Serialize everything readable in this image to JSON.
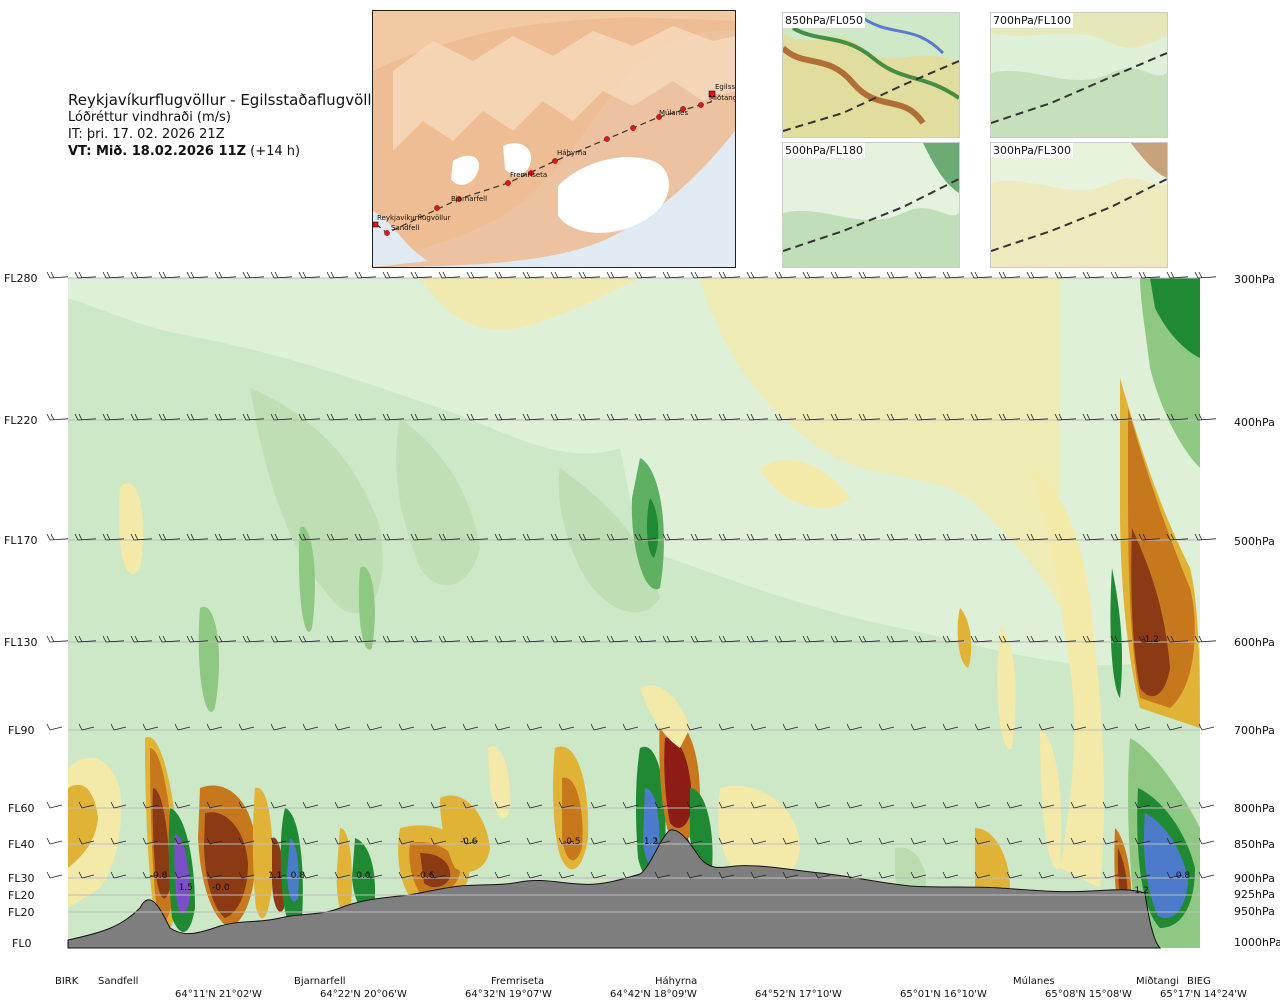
{
  "header": {
    "route": "Reykjavíkurflugvöllur - Egilsstaðaflugvöllur",
    "parameter": "Lóðréttur vindhraði (m/s)",
    "issue_time": "IT: þri. 17. 02. 2026 21Z",
    "valid_label": "VT: Mið. 18.02.2026 11Z",
    "valid_offset": "(+14 h)"
  },
  "map": {
    "waypoints": [
      "Reykjavíkurflugvöllur",
      "Sandfell",
      "Bjarnarfell",
      "Fremriseta",
      "Háhyrna",
      "Múlanes",
      "Miðtangi",
      "Egilsstaðir"
    ]
  },
  "thumbnails": [
    {
      "label": "850hPa/FL050"
    },
    {
      "label": "700hPa/FL100"
    },
    {
      "label": "500hPa/FL180"
    },
    {
      "label": "300hPa/FL300"
    }
  ],
  "chart_data": {
    "type": "heatmap",
    "title": "Reykjavíkurflugvöllur - Egilsstaðaflugvöllur",
    "colorbar_label": "Lóðréttur vindhraði (m/s)",
    "left_axis_flight_levels": [
      "FL280",
      "FL220",
      "FL170",
      "FL130",
      "FL90",
      "FL60",
      "FL40",
      "FL30",
      "FL20",
      "FL20",
      "FL0"
    ],
    "right_axis_pressure_levels": [
      "300hPa",
      "400hPa",
      "500hPa",
      "600hPa",
      "700hPa",
      "800hPa",
      "850hPa",
      "900hPa",
      "925hPa",
      "950hPa",
      "1000hPa"
    ],
    "waypoints": [
      "BIRK",
      "Sandfell",
      "Bjarnarfell",
      "Fremriseta",
      "Háhyrna",
      "Múlanes",
      "Miðtangi",
      "BIEG"
    ],
    "coordinates": [
      "64°11'N 21°02'W",
      "64°22'N 20°06'W",
      "64°32'N 19°07'W",
      "64°42'N 18°09'W",
      "64°52'N 17°10'W",
      "65°01'N 16°10'W",
      "65°08'N 15°08'W",
      "65°17'N 14°24'W"
    ],
    "contour_labels": [
      {
        "text": "-0.8",
        "x": 0.08,
        "p": 900
      },
      {
        "text": "1.5",
        "x": 0.104,
        "p": 918
      },
      {
        "text": "-0.0",
        "x": 0.135,
        "p": 918
      },
      {
        "text": "1.1",
        "x": 0.183,
        "p": 900
      },
      {
        "text": "0.8",
        "x": 0.203,
        "p": 900
      },
      {
        "text": "0.0",
        "x": 0.261,
        "p": 900
      },
      {
        "text": "-0.6",
        "x": 0.316,
        "p": 900
      },
      {
        "text": "-0.6",
        "x": 0.354,
        "p": 850
      },
      {
        "text": "-0.5",
        "x": 0.445,
        "p": 850
      },
      {
        "text": "1.2",
        "x": 0.515,
        "p": 850
      },
      {
        "text": "-1.2",
        "x": 0.956,
        "p": 600
      },
      {
        "text": "-1.2",
        "x": 0.947,
        "p": 922
      },
      {
        "text": "0.8",
        "x": 0.985,
        "p": 900
      }
    ]
  }
}
